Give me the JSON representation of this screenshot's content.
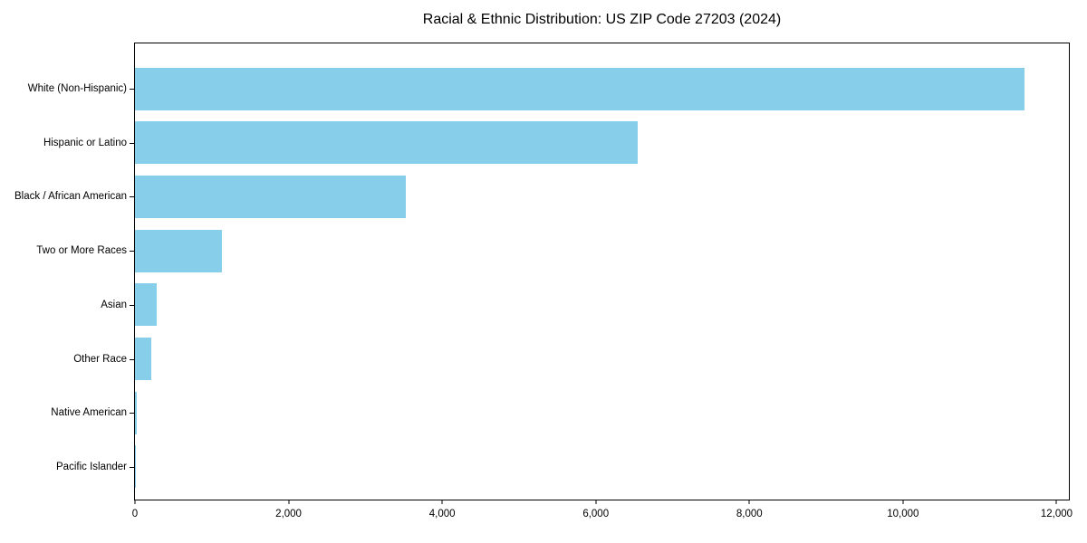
{
  "chart_data": {
    "type": "bar",
    "orientation": "horizontal",
    "title": "Racial & Ethnic Distribution: US ZIP Code 27203 (2024)",
    "xlabel": "",
    "ylabel": "",
    "categories": [
      "White (Non-Hispanic)",
      "Hispanic or Latino",
      "Black / African American",
      "Two or More Races",
      "Asian",
      "Other Race",
      "Native American",
      "Pacific Islander"
    ],
    "values": [
      11580,
      6540,
      3530,
      1130,
      283,
      212,
      18,
      6
    ],
    "xlim": [
      0,
      12160
    ],
    "xticks": [
      {
        "value": 0,
        "label": "0"
      },
      {
        "value": 2000,
        "label": "2,000"
      },
      {
        "value": 4000,
        "label": "4,000"
      },
      {
        "value": 6000,
        "label": "6,000"
      },
      {
        "value": 8000,
        "label": "8,000"
      },
      {
        "value": 10000,
        "label": "10,000"
      },
      {
        "value": 12000,
        "label": "12,000"
      }
    ],
    "grid": false,
    "legend_shown": false,
    "colors": {
      "bar": "#87CEEB",
      "axis": "#000000",
      "text": "#000000",
      "background": "#FFFFFF"
    }
  }
}
